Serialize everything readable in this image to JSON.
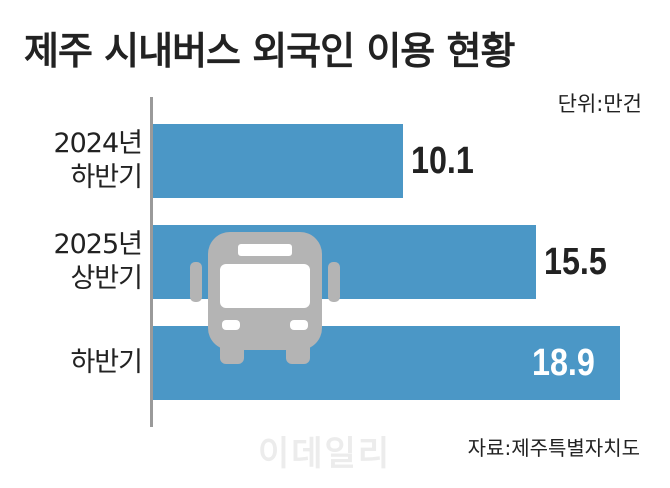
{
  "chart_data": {
    "type": "bar",
    "orientation": "horizontal",
    "title": "제주 시내버스 외국인 이용 현황",
    "unit": "단위:만건",
    "categories": [
      "2024년\n하반기",
      "2025년\n상반기",
      "하반기"
    ],
    "values": [
      10.1,
      15.5,
      18.9
    ],
    "color": "#4b97c6",
    "source": "자료:제주특별자치도",
    "watermark": "이데일리"
  }
}
